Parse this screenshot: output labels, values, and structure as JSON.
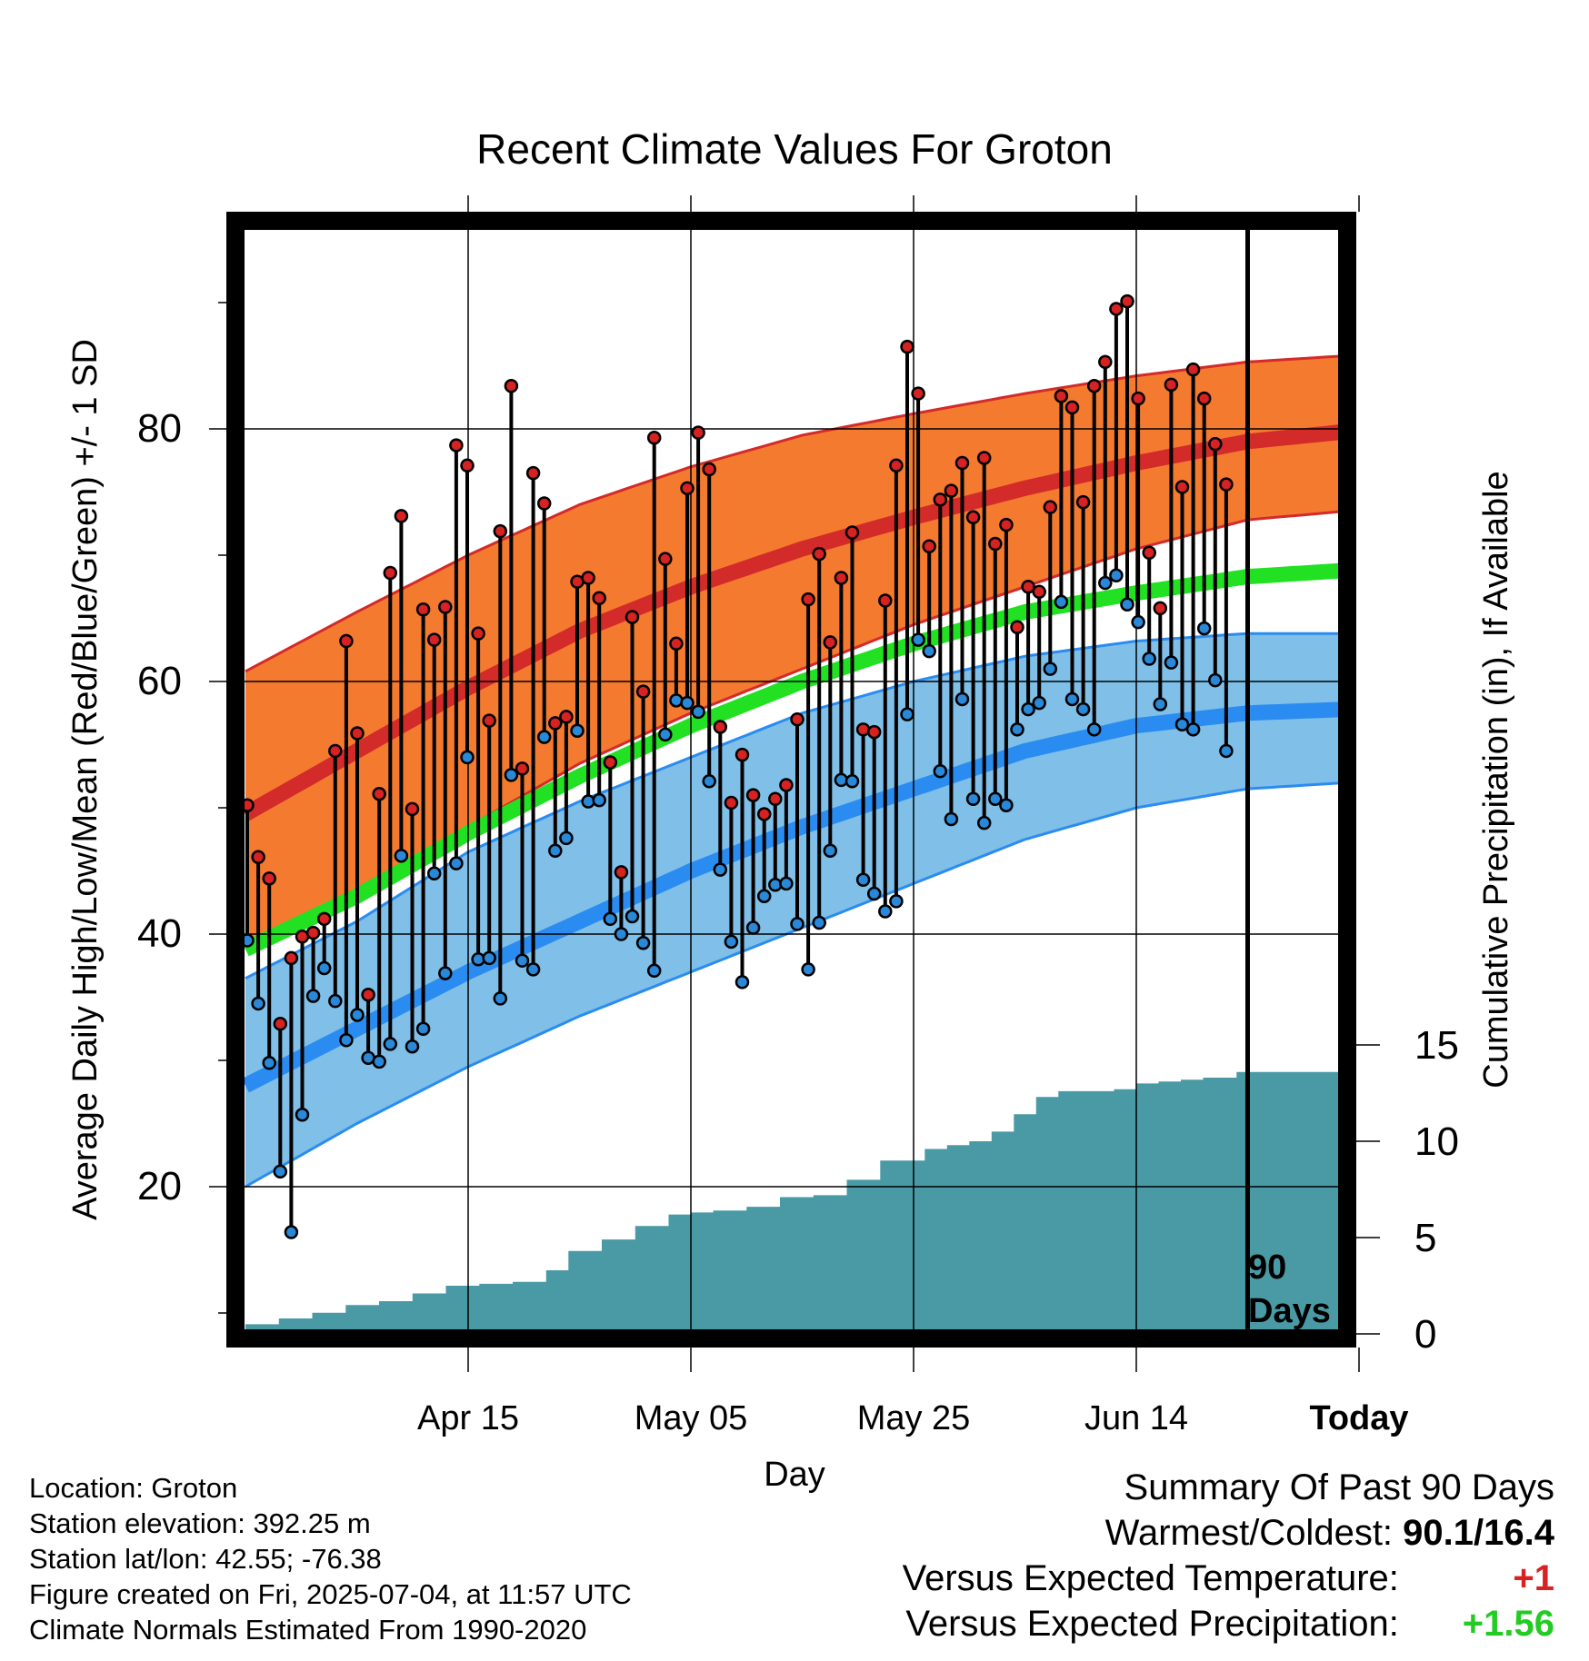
{
  "chart_data": {
    "type": "line",
    "title": "Recent Climate Values For Groton",
    "xlabel": "Day",
    "ylabel": "Average Daily High/Low/Mean (Red/Blue/Green) +/- 1 SD",
    "y2label": "Cumulative Precipitation (in), If Available",
    "x_ticks": [
      "Apr 15",
      "May 05",
      "May 25",
      "Jun 14",
      "Today"
    ],
    "x_range_days": [
      -90,
      9
    ],
    "ylim": [
      5,
      95
    ],
    "y_ticks": [
      20,
      40,
      60,
      80
    ],
    "y2lim": [
      0,
      25
    ],
    "y2_ticks": [
      0,
      5,
      10,
      15
    ],
    "grid": true,
    "today_marker_label": [
      "90",
      "Days"
    ],
    "normals": {
      "days": [
        -90,
        -80,
        -70,
        -60,
        -50,
        -40,
        -30,
        -20,
        -10,
        0,
        9
      ],
      "high_mean": [
        49.5,
        54.5,
        59.5,
        64.0,
        67.5,
        70.5,
        73.0,
        75.3,
        77.3,
        79.0,
        79.8
      ],
      "high_upper": [
        60.8,
        65.5,
        70.0,
        74.0,
        77.0,
        79.5,
        81.2,
        82.8,
        84.2,
        85.3,
        85.8
      ],
      "high_lower": [
        38.8,
        43.5,
        48.5,
        53.5,
        57.5,
        61.0,
        64.5,
        67.5,
        70.5,
        72.8,
        73.5
      ],
      "mean": [
        38.8,
        43.0,
        48.0,
        52.5,
        56.5,
        60.0,
        63.0,
        65.5,
        67.0,
        68.3,
        68.8
      ],
      "low_mean": [
        28.0,
        32.5,
        37.0,
        41.0,
        45.0,
        48.5,
        51.5,
        54.5,
        56.5,
        57.5,
        57.8
      ],
      "low_upper": [
        36.5,
        41.0,
        46.5,
        50.5,
        54.0,
        57.5,
        60.0,
        62.0,
        63.2,
        63.8,
        63.8
      ],
      "low_lower": [
        20.0,
        25.0,
        29.5,
        33.5,
        37.0,
        40.5,
        44.0,
        47.5,
        50.0,
        51.5,
        52.0
      ]
    },
    "series": [
      {
        "name": "High",
        "color": "#d62222",
        "values": [
          50.2,
          46.1,
          44.4,
          32.9,
          38.1,
          39.8,
          40.1,
          41.2,
          54.5,
          63.2,
          55.9,
          35.2,
          51.1,
          68.6,
          73.1,
          49.9,
          65.7,
          63.3,
          65.9,
          78.7,
          77.1,
          63.8,
          56.9,
          71.9,
          83.4,
          53.1,
          76.5,
          74.1,
          56.7,
          57.2,
          67.9,
          68.2,
          66.6,
          53.6,
          44.9,
          65.1,
          59.2,
          79.3,
          69.7,
          63.0,
          75.3,
          79.7,
          76.8,
          56.4,
          50.4,
          54.2,
          51.0,
          49.5,
          50.7,
          51.8,
          57.0,
          66.5,
          70.1,
          63.1,
          68.2,
          71.8,
          56.2,
          56.0,
          66.4,
          77.1,
          86.5,
          82.8,
          70.7,
          74.4,
          75.1,
          77.3,
          73.0,
          77.7,
          70.9,
          72.4,
          64.3,
          67.5,
          67.1,
          73.8,
          82.6,
          81.7,
          74.2,
          83.4,
          85.3,
          89.5,
          90.1,
          82.4,
          70.2,
          65.8,
          83.5,
          75.4,
          84.7,
          82.4,
          78.8,
          75.6
        ]
      },
      {
        "name": "Low",
        "color": "#2a88d8",
        "values": [
          39.5,
          34.5,
          29.8,
          21.2,
          16.4,
          25.7,
          35.1,
          37.3,
          34.7,
          31.6,
          33.6,
          30.2,
          29.9,
          31.3,
          46.2,
          31.1,
          32.5,
          44.8,
          36.9,
          45.6,
          54.0,
          38.0,
          38.1,
          34.9,
          52.6,
          37.9,
          37.2,
          55.6,
          46.6,
          47.6,
          56.1,
          50.5,
          50.6,
          41.2,
          40.0,
          41.4,
          39.3,
          37.1,
          55.8,
          58.5,
          58.3,
          57.6,
          52.1,
          45.1,
          39.4,
          36.2,
          40.5,
          43.0,
          43.9,
          44.0,
          40.8,
          37.2,
          40.9,
          46.6,
          52.2,
          52.1,
          44.3,
          43.2,
          41.8,
          42.6,
          57.4,
          63.3,
          62.4,
          52.9,
          49.1,
          58.6,
          50.7,
          48.8,
          50.7,
          50.2,
          56.2,
          57.8,
          58.3,
          61.0,
          66.3,
          58.6,
          57.8,
          56.2,
          67.8,
          68.4,
          66.1,
          64.7,
          61.8,
          58.2,
          61.5,
          56.6,
          56.2,
          64.2,
          60.1,
          54.5
        ]
      },
      {
        "name": "Cumulative Precipitation",
        "color": "#4a9aa5",
        "days": [
          -90,
          -87,
          -84,
          -81,
          -78,
          -75,
          -72,
          -69,
          -66,
          -63,
          -61,
          -58,
          -55,
          -52,
          -50,
          -48,
          -45,
          -42,
          -39,
          -36,
          -33,
          -31,
          -29,
          -27,
          -25,
          -23,
          -21,
          -19,
          -17,
          -15,
          -12,
          -10,
          -8,
          -6,
          -4,
          -1,
          0,
          9
        ],
        "values": [
          0.5,
          0.8,
          1.1,
          1.5,
          1.7,
          2.1,
          2.5,
          2.6,
          2.7,
          3.3,
          4.3,
          4.9,
          5.6,
          6.2,
          6.3,
          6.4,
          6.6,
          7.1,
          7.2,
          8.0,
          9.0,
          9.0,
          9.6,
          9.8,
          10.0,
          10.5,
          11.4,
          12.3,
          12.6,
          12.6,
          12.7,
          13.0,
          13.1,
          13.2,
          13.3,
          13.6,
          13.6,
          13.6
        ]
      }
    ]
  },
  "info": {
    "location": "Location: Groton",
    "elevation": "Station elevation: 392.25 m",
    "latlon": "Station lat/lon: 42.55; -76.38",
    "created": "Figure created on Fri, 2025-07-04, at 11:57 UTC",
    "normals": "Climate Normals Estimated From 1990-2020"
  },
  "summary": {
    "title": "Summary Of Past 90 Days",
    "warm_label": "Warmest/Coldest:",
    "warm_value": "90.1/16.4",
    "temp_label": "Versus Expected Temperature:",
    "temp_value": "+1",
    "temp_color": "#d62222",
    "precip_label": "Versus Expected Precipitation:",
    "precip_value": "+1.56",
    "precip_color": "#22cc22"
  },
  "colors": {
    "high_band": "#f47a30",
    "high_line": "#d32a2a",
    "mean_line": "#22e022",
    "low_band": "#7fbfe8",
    "low_line": "#2a8cf0",
    "precip": "#4a9aa5",
    "grid": "#000000"
  }
}
